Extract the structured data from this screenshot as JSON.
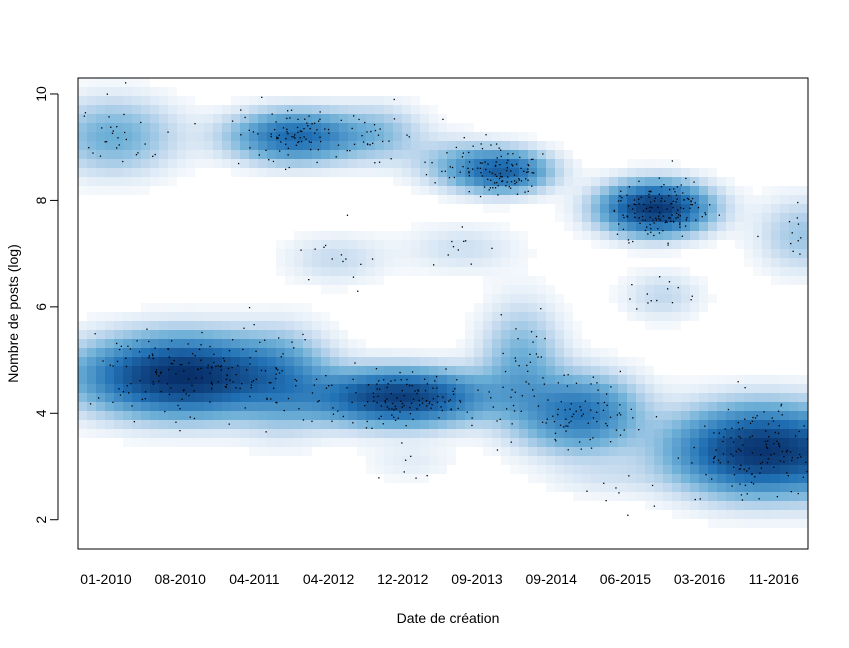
{
  "chart_data": {
    "type": "heatmap",
    "subtype": "smoothed-density scatter",
    "xlabel": "Date de création",
    "ylabel": "Nombre de posts (log)",
    "x_tick_labels": [
      "01-2010",
      "08-2010",
      "04-2011",
      "04-2012",
      "12-2012",
      "09-2013",
      "09-2014",
      "06-2015",
      "03-2016",
      "11-2016"
    ],
    "y_ticks": [
      2,
      4,
      6,
      8,
      10
    ],
    "ylim": [
      1.45,
      10.3
    ],
    "color_scale": [
      "#ffffff",
      "#c6dbef",
      "#6baed6",
      "#2171b5",
      "#08306b",
      "#ff0000"
    ],
    "point_color": "#000000",
    "grid": false,
    "clusters": [
      {
        "x": 0.1,
        "y": 9.2,
        "sx": 0.55,
        "sy": 0.45,
        "w": 0.4
      },
      {
        "x": 2.55,
        "y": 9.2,
        "sx": 0.55,
        "sy": 0.3,
        "w": 0.95
      },
      {
        "x": 3.7,
        "y": 9.25,
        "sx": 0.4,
        "sy": 0.35,
        "w": 0.25
      },
      {
        "x": 4.7,
        "y": 8.7,
        "sx": 0.4,
        "sy": 0.3,
        "w": 0.25
      },
      {
        "x": 5.35,
        "y": 8.55,
        "sx": 0.4,
        "sy": 0.25,
        "w": 1.0
      },
      {
        "x": 7.4,
        "y": 7.85,
        "sx": 0.45,
        "sy": 0.3,
        "w": 1.55
      },
      {
        "x": 9.4,
        "y": 7.35,
        "sx": 0.4,
        "sy": 0.45,
        "w": 0.25
      },
      {
        "x": 3.1,
        "y": 6.9,
        "sx": 0.45,
        "sy": 0.3,
        "w": 0.14
      },
      {
        "x": 4.8,
        "y": 7.1,
        "sx": 0.5,
        "sy": 0.3,
        "w": 0.12
      },
      {
        "x": 7.5,
        "y": 6.2,
        "sx": 0.35,
        "sy": 0.3,
        "w": 0.15
      },
      {
        "x": 1.05,
        "y": 4.7,
        "sx": 0.85,
        "sy": 0.45,
        "w": 1.7
      },
      {
        "x": 2.4,
        "y": 4.6,
        "sx": 0.4,
        "sy": 0.6,
        "w": 0.35
      },
      {
        "x": 3.95,
        "y": 4.3,
        "sx": 0.75,
        "sy": 0.32,
        "w": 1.45
      },
      {
        "x": 5.6,
        "y": 4.9,
        "sx": 0.35,
        "sy": 0.7,
        "w": 0.4
      },
      {
        "x": 6.4,
        "y": 4.0,
        "sx": 0.5,
        "sy": 0.45,
        "w": 0.85
      },
      {
        "x": 8.85,
        "y": 3.3,
        "sx": 0.75,
        "sy": 0.5,
        "w": 1.6
      },
      {
        "x": 9.8,
        "y": 3.1,
        "sx": 0.3,
        "sy": 0.5,
        "w": 0.3
      },
      {
        "x": 4.1,
        "y": 3.1,
        "sx": 0.4,
        "sy": 0.25,
        "w": 0.07
      },
      {
        "x": 6.7,
        "y": 2.8,
        "sx": 0.5,
        "sy": 0.25,
        "w": 0.08
      }
    ]
  }
}
